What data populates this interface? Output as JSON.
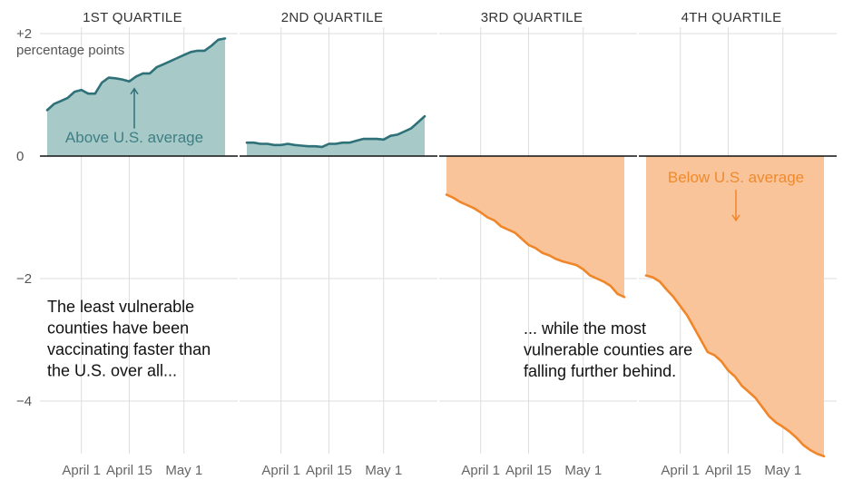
{
  "chart_data": {
    "type": "area",
    "ylim": [
      -4.9,
      2.0
    ],
    "yticks": [
      {
        "value": 2,
        "label": "+2"
      },
      {
        "value": 0,
        "label": "0"
      },
      {
        "value": -2,
        "label": "−2"
      },
      {
        "value": -4,
        "label": "−4"
      }
    ],
    "yunit": "percentage points",
    "xticks": [
      {
        "label": "April 1",
        "day": 10
      },
      {
        "label": "April 15",
        "day": 24
      },
      {
        "label": "May 1",
        "day": 40
      }
    ],
    "x_day_range": [
      0,
      52
    ],
    "colors": {
      "positive_fill": "#a7c9c8",
      "positive_line": "#2f7178",
      "negative_fill": "#f9c49a",
      "negative_line": "#f0862a",
      "grid": "#dddddd",
      "zero": "#111111"
    },
    "panels": [
      {
        "title": "1ST QUARTILE",
        "x": [
          0,
          2,
          4,
          6,
          8,
          10,
          12,
          14,
          16,
          18,
          20,
          22,
          24,
          26,
          28,
          30,
          32,
          34,
          36,
          38,
          40,
          42,
          44,
          46,
          48,
          50,
          52
        ],
        "values": [
          0.75,
          0.85,
          0.9,
          0.95,
          1.05,
          1.08,
          1.02,
          1.02,
          1.2,
          1.28,
          1.27,
          1.25,
          1.22,
          1.3,
          1.35,
          1.35,
          1.45,
          1.5,
          1.55,
          1.6,
          1.65,
          1.7,
          1.72,
          1.72,
          1.8,
          1.9,
          1.92
        ]
      },
      {
        "title": "2ND QUARTILE",
        "x": [
          0,
          2,
          4,
          6,
          8,
          10,
          12,
          14,
          16,
          18,
          20,
          22,
          24,
          26,
          28,
          30,
          32,
          34,
          36,
          38,
          40,
          42,
          44,
          46,
          48,
          50,
          52
        ],
        "values": [
          0.22,
          0.22,
          0.2,
          0.2,
          0.18,
          0.18,
          0.2,
          0.18,
          0.17,
          0.16,
          0.16,
          0.15,
          0.2,
          0.2,
          0.22,
          0.22,
          0.25,
          0.28,
          0.28,
          0.28,
          0.27,
          0.33,
          0.35,
          0.4,
          0.45,
          0.55,
          0.65
        ]
      },
      {
        "title": "3RD QUARTILE",
        "x": [
          0,
          2,
          4,
          6,
          8,
          10,
          12,
          14,
          16,
          18,
          20,
          22,
          24,
          26,
          28,
          30,
          32,
          34,
          36,
          38,
          40,
          42,
          44,
          46,
          48,
          50,
          52
        ],
        "values": [
          -0.63,
          -0.68,
          -0.75,
          -0.8,
          -0.85,
          -0.92,
          -1.0,
          -1.05,
          -1.15,
          -1.2,
          -1.25,
          -1.35,
          -1.45,
          -1.5,
          -1.58,
          -1.62,
          -1.68,
          -1.72,
          -1.75,
          -1.78,
          -1.85,
          -1.95,
          -2.0,
          -2.05,
          -2.12,
          -2.25,
          -2.3
        ]
      },
      {
        "title": "4TH QUARTILE",
        "x": [
          0,
          2,
          4,
          6,
          8,
          10,
          12,
          14,
          16,
          18,
          20,
          22,
          24,
          26,
          28,
          30,
          32,
          34,
          36,
          38,
          40,
          42,
          44,
          46,
          48,
          50,
          52
        ],
        "values": [
          -1.95,
          -1.98,
          -2.05,
          -2.18,
          -2.3,
          -2.45,
          -2.6,
          -2.8,
          -3.0,
          -3.2,
          -3.25,
          -3.35,
          -3.5,
          -3.6,
          -3.75,
          -3.85,
          -3.95,
          -4.1,
          -4.25,
          -4.35,
          -4.42,
          -4.5,
          -4.6,
          -4.72,
          -4.8,
          -4.86,
          -4.9
        ]
      }
    ],
    "highlights": [
      {
        "panel": 0,
        "text": "Above U.S. average",
        "arrow_from": 0.45,
        "arrow_to": 1.1
      },
      {
        "panel": 3,
        "text": "Below U.S. average",
        "arrow_from": -0.55,
        "arrow_to": -1.05
      }
    ],
    "annotations": [
      {
        "lines": [
          "The least vulnerable",
          "counties have been",
          "vaccinating faster than",
          "the U.S. over all..."
        ]
      },
      {
        "lines": [
          "... while the most",
          "vulnerable counties are",
          "falling further behind."
        ]
      }
    ]
  }
}
